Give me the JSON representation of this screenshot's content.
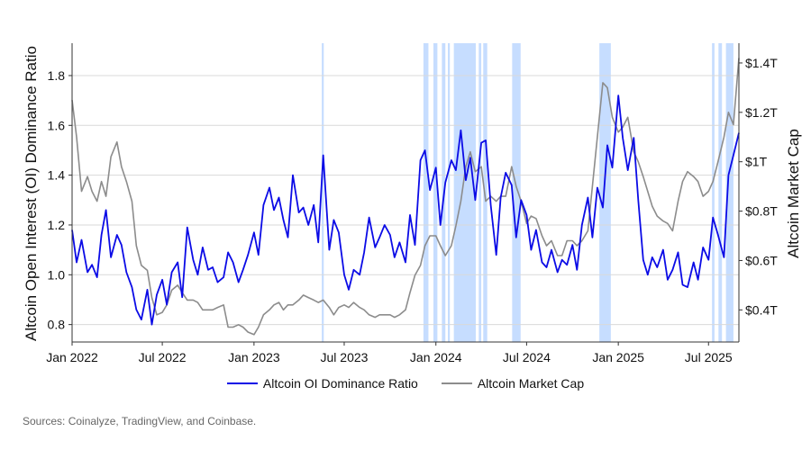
{
  "colors": {
    "ratio": "#0b0be6",
    "market_cap": "#8c8c8c",
    "highlight": "#c6ddff",
    "grid": "#d9d9d9"
  },
  "source": "Sources: Coinalyze, TradingView, and Coinbase.",
  "chart_data": {
    "type": "line",
    "xlabel": "",
    "ylabel": "Altcoin Open Interest (OI) Dominance Ratio",
    "y2label": "Altcoin Market Cap",
    "xlim": [
      "2022-01-01",
      "2025-08-31"
    ],
    "ylim": [
      0.73,
      1.93
    ],
    "y2lim": [
      0.27,
      1.48
    ],
    "x_ticks": [
      {
        "date": "2022-01-01",
        "label": "Jan 2022"
      },
      {
        "date": "2022-07-01",
        "label": "Jul 2022"
      },
      {
        "date": "2023-01-01",
        "label": "Jan 2023"
      },
      {
        "date": "2023-07-01",
        "label": "Jul 2023"
      },
      {
        "date": "2024-01-01",
        "label": "Jan 2024"
      },
      {
        "date": "2024-07-01",
        "label": "Jul 2024"
      },
      {
        "date": "2025-01-01",
        "label": "Jan 2025"
      },
      {
        "date": "2025-07-01",
        "label": "Jul 2025"
      }
    ],
    "y_ticks": [
      {
        "value": 0.8,
        "label": "0.8"
      },
      {
        "value": 1.0,
        "label": "1.0"
      },
      {
        "value": 1.2,
        "label": "1.2"
      },
      {
        "value": 1.4,
        "label": "1.4"
      },
      {
        "value": 1.6,
        "label": "1.6"
      },
      {
        "value": 1.8,
        "label": "1.8"
      }
    ],
    "y2_ticks": [
      {
        "value": 0.4,
        "label": "$0.4T"
      },
      {
        "value": 0.6,
        "label": "$0.6T"
      },
      {
        "value": 0.8,
        "label": "$0.8T"
      },
      {
        "value": 1.0,
        "label": "$1T"
      },
      {
        "value": 1.2,
        "label": "$1.2T"
      },
      {
        "value": 1.4,
        "label": "$1.4T"
      }
    ],
    "grid": true,
    "legend_position": "bottom-center",
    "highlight_periods": [
      [
        "2023-05-17",
        "2023-05-21"
      ],
      [
        "2023-12-07",
        "2023-12-17"
      ],
      [
        "2023-12-27",
        "2024-01-04"
      ],
      [
        "2024-01-13",
        "2024-01-20"
      ],
      [
        "2024-01-25",
        "2024-01-29"
      ],
      [
        "2024-02-06",
        "2024-03-21"
      ],
      [
        "2024-03-27",
        "2024-04-01"
      ],
      [
        "2024-04-05",
        "2024-04-13"
      ],
      [
        "2024-06-02",
        "2024-06-19"
      ],
      [
        "2024-11-24",
        "2024-12-17"
      ],
      [
        "2025-07-08",
        "2025-07-13"
      ],
      [
        "2025-07-21",
        "2025-07-28"
      ],
      [
        "2025-08-05",
        "2025-08-20"
      ]
    ],
    "series": [
      {
        "name": "Altcoin OI Dominance Ratio",
        "axis": "left",
        "x": [
          "2022-01-01",
          "2022-01-10",
          "2022-01-20",
          "2022-02-01",
          "2022-02-10",
          "2022-02-20",
          "2022-03-01",
          "2022-03-10",
          "2022-03-20",
          "2022-04-01",
          "2022-04-10",
          "2022-04-20",
          "2022-05-01",
          "2022-05-10",
          "2022-05-20",
          "2022-06-01",
          "2022-06-10",
          "2022-06-20",
          "2022-07-01",
          "2022-07-10",
          "2022-07-20",
          "2022-08-01",
          "2022-08-10",
          "2022-08-20",
          "2022-09-01",
          "2022-09-10",
          "2022-09-20",
          "2022-10-01",
          "2022-10-10",
          "2022-10-20",
          "2022-11-01",
          "2022-11-10",
          "2022-11-20",
          "2022-12-01",
          "2022-12-10",
          "2022-12-20",
          "2023-01-01",
          "2023-01-10",
          "2023-01-20",
          "2023-02-01",
          "2023-02-10",
          "2023-02-20",
          "2023-03-01",
          "2023-03-10",
          "2023-03-20",
          "2023-04-01",
          "2023-04-10",
          "2023-04-20",
          "2023-05-01",
          "2023-05-10",
          "2023-05-20",
          "2023-06-01",
          "2023-06-10",
          "2023-06-20",
          "2023-07-01",
          "2023-07-10",
          "2023-07-20",
          "2023-08-01",
          "2023-08-10",
          "2023-08-20",
          "2023-09-01",
          "2023-09-10",
          "2023-09-20",
          "2023-10-01",
          "2023-10-10",
          "2023-10-20",
          "2023-11-01",
          "2023-11-10",
          "2023-11-20",
          "2023-12-01",
          "2023-12-10",
          "2023-12-20",
          "2024-01-01",
          "2024-01-10",
          "2024-01-20",
          "2024-02-01",
          "2024-02-10",
          "2024-02-20",
          "2024-03-01",
          "2024-03-10",
          "2024-03-20",
          "2024-04-01",
          "2024-04-10",
          "2024-04-20",
          "2024-05-01",
          "2024-05-10",
          "2024-05-20",
          "2024-06-01",
          "2024-06-10",
          "2024-06-20",
          "2024-07-01",
          "2024-07-10",
          "2024-07-20",
          "2024-08-01",
          "2024-08-10",
          "2024-08-20",
          "2024-09-01",
          "2024-09-10",
          "2024-09-20",
          "2024-10-01",
          "2024-10-10",
          "2024-10-20",
          "2024-11-01",
          "2024-11-10",
          "2024-11-20",
          "2024-12-01",
          "2024-12-10",
          "2024-12-20",
          "2025-01-01",
          "2025-01-10",
          "2025-01-20",
          "2025-02-01",
          "2025-02-10",
          "2025-02-20",
          "2025-03-01",
          "2025-03-10",
          "2025-03-20",
          "2025-04-01",
          "2025-04-10",
          "2025-04-20",
          "2025-05-01",
          "2025-05-10",
          "2025-05-20",
          "2025-06-01",
          "2025-06-10",
          "2025-06-20",
          "2025-07-01",
          "2025-07-10",
          "2025-07-20",
          "2025-08-01",
          "2025-08-10",
          "2025-08-20",
          "2025-08-31"
        ],
        "values": [
          1.18,
          1.05,
          1.14,
          1.01,
          1.04,
          0.99,
          1.16,
          1.26,
          1.07,
          1.16,
          1.12,
          1.01,
          0.95,
          0.86,
          0.82,
          0.94,
          0.8,
          0.92,
          0.98,
          0.88,
          1.01,
          1.05,
          0.91,
          1.19,
          1.06,
          1.0,
          1.11,
          1.02,
          1.03,
          0.97,
          0.99,
          1.09,
          1.05,
          0.97,
          1.02,
          1.08,
          1.17,
          1.08,
          1.28,
          1.35,
          1.26,
          1.31,
          1.22,
          1.15,
          1.4,
          1.25,
          1.27,
          1.2,
          1.28,
          1.13,
          1.48,
          1.1,
          1.22,
          1.17,
          1.0,
          0.94,
          1.02,
          1.0,
          1.09,
          1.23,
          1.11,
          1.15,
          1.2,
          1.16,
          1.07,
          1.13,
          1.05,
          1.24,
          1.12,
          1.46,
          1.5,
          1.34,
          1.43,
          1.2,
          1.37,
          1.46,
          1.42,
          1.58,
          1.38,
          1.47,
          1.3,
          1.53,
          1.54,
          1.28,
          1.08,
          1.31,
          1.41,
          1.36,
          1.15,
          1.3,
          1.24,
          1.1,
          1.18,
          1.05,
          1.03,
          1.1,
          1.01,
          1.06,
          1.04,
          1.12,
          1.02,
          1.2,
          1.31,
          1.15,
          1.35,
          1.27,
          1.52,
          1.43,
          1.72,
          1.55,
          1.42,
          1.55,
          1.3,
          1.06,
          1.0,
          1.07,
          1.03,
          1.1,
          0.98,
          1.02,
          1.09,
          0.96,
          0.95,
          1.05,
          0.98,
          1.11,
          1.06,
          1.23,
          1.16,
          1.07,
          1.4,
          1.48,
          1.57
        ],
        "color_key": "ratio"
      },
      {
        "name": "Altcoin Market Cap",
        "axis": "right",
        "x": [
          "2022-01-01",
          "2022-01-10",
          "2022-01-20",
          "2022-02-01",
          "2022-02-10",
          "2022-02-20",
          "2022-03-01",
          "2022-03-10",
          "2022-03-20",
          "2022-04-01",
          "2022-04-10",
          "2022-04-20",
          "2022-05-01",
          "2022-05-10",
          "2022-05-20",
          "2022-06-01",
          "2022-06-10",
          "2022-06-20",
          "2022-07-01",
          "2022-07-10",
          "2022-07-20",
          "2022-08-01",
          "2022-08-10",
          "2022-08-20",
          "2022-09-01",
          "2022-09-10",
          "2022-09-20",
          "2022-10-01",
          "2022-10-10",
          "2022-10-20",
          "2022-11-01",
          "2022-11-10",
          "2022-11-20",
          "2022-12-01",
          "2022-12-10",
          "2022-12-20",
          "2023-01-01",
          "2023-01-10",
          "2023-01-20",
          "2023-02-01",
          "2023-02-10",
          "2023-02-20",
          "2023-03-01",
          "2023-03-10",
          "2023-03-20",
          "2023-04-01",
          "2023-04-10",
          "2023-04-20",
          "2023-05-01",
          "2023-05-10",
          "2023-05-20",
          "2023-06-01",
          "2023-06-10",
          "2023-06-20",
          "2023-07-01",
          "2023-07-10",
          "2023-07-20",
          "2023-08-01",
          "2023-08-10",
          "2023-08-20",
          "2023-09-01",
          "2023-09-10",
          "2023-09-20",
          "2023-10-01",
          "2023-10-10",
          "2023-10-20",
          "2023-11-01",
          "2023-11-10",
          "2023-11-20",
          "2023-12-01",
          "2023-12-10",
          "2023-12-20",
          "2024-01-01",
          "2024-01-10",
          "2024-01-20",
          "2024-02-01",
          "2024-02-10",
          "2024-02-20",
          "2024-03-01",
          "2024-03-10",
          "2024-03-20",
          "2024-04-01",
          "2024-04-10",
          "2024-04-20",
          "2024-05-01",
          "2024-05-10",
          "2024-05-20",
          "2024-06-01",
          "2024-06-10",
          "2024-06-20",
          "2024-07-01",
          "2024-07-10",
          "2024-07-20",
          "2024-08-01",
          "2024-08-10",
          "2024-08-20",
          "2024-09-01",
          "2024-09-10",
          "2024-09-20",
          "2024-10-01",
          "2024-10-10",
          "2024-10-20",
          "2024-11-01",
          "2024-11-10",
          "2024-11-20",
          "2024-12-01",
          "2024-12-10",
          "2024-12-20",
          "2025-01-01",
          "2025-01-10",
          "2025-01-20",
          "2025-02-01",
          "2025-02-10",
          "2025-02-20",
          "2025-03-01",
          "2025-03-10",
          "2025-03-20",
          "2025-04-01",
          "2025-04-10",
          "2025-04-20",
          "2025-05-01",
          "2025-05-10",
          "2025-05-20",
          "2025-06-01",
          "2025-06-10",
          "2025-06-20",
          "2025-07-01",
          "2025-07-10",
          "2025-07-20",
          "2025-08-01",
          "2025-08-10",
          "2025-08-20",
          "2025-08-31"
        ],
        "values": [
          1.25,
          1.1,
          0.88,
          0.94,
          0.88,
          0.84,
          0.92,
          0.86,
          1.02,
          1.08,
          0.98,
          0.92,
          0.84,
          0.66,
          0.58,
          0.56,
          0.45,
          0.38,
          0.39,
          0.42,
          0.48,
          0.5,
          0.47,
          0.44,
          0.44,
          0.43,
          0.4,
          0.4,
          0.4,
          0.41,
          0.42,
          0.33,
          0.33,
          0.34,
          0.33,
          0.31,
          0.3,
          0.33,
          0.38,
          0.4,
          0.42,
          0.43,
          0.4,
          0.42,
          0.42,
          0.44,
          0.46,
          0.45,
          0.44,
          0.43,
          0.44,
          0.41,
          0.38,
          0.41,
          0.42,
          0.41,
          0.43,
          0.41,
          0.4,
          0.38,
          0.37,
          0.38,
          0.38,
          0.38,
          0.37,
          0.38,
          0.4,
          0.47,
          0.54,
          0.58,
          0.66,
          0.7,
          0.7,
          0.66,
          0.62,
          0.66,
          0.74,
          0.84,
          0.98,
          1.04,
          0.96,
          0.98,
          0.84,
          0.86,
          0.84,
          0.86,
          0.86,
          0.98,
          0.9,
          0.84,
          0.75,
          0.78,
          0.77,
          0.7,
          0.66,
          0.68,
          0.62,
          0.62,
          0.68,
          0.68,
          0.66,
          0.68,
          0.72,
          0.9,
          1.1,
          1.32,
          1.3,
          1.18,
          1.12,
          1.14,
          1.18,
          1.04,
          1.0,
          0.94,
          0.88,
          0.82,
          0.78,
          0.76,
          0.75,
          0.72,
          0.84,
          0.92,
          0.96,
          0.94,
          0.92,
          0.86,
          0.88,
          0.92,
          1.0,
          1.1,
          1.2,
          1.15,
          1.42
        ],
        "color_key": "market_cap"
      }
    ]
  }
}
